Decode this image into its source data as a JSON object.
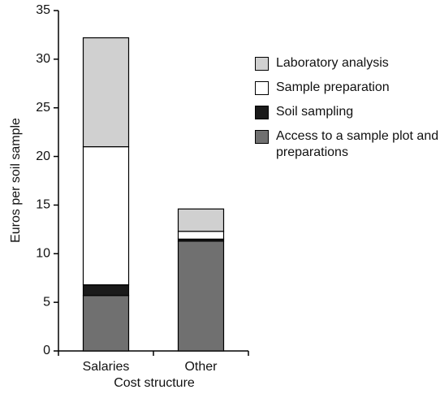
{
  "chart_data": {
    "type": "stacked_bar",
    "x_label": "Cost structure",
    "y_label": "Euros per soil sample",
    "categories": [
      "Salaries",
      "Other"
    ],
    "series": [
      {
        "name": "Access to a sample plot and preparations",
        "color": "#707070",
        "values": [
          5.7,
          11.3
        ]
      },
      {
        "name": "Soil sampling",
        "color": "#1a1a1a",
        "values": [
          1.1,
          0.2
        ]
      },
      {
        "name": "Sample preparation",
        "color": "#ffffff",
        "values": [
          14.2,
          0.8
        ]
      },
      {
        "name": "Laboratory analysis",
        "color": "#d0d0d0",
        "values": [
          11.2,
          2.3
        ]
      }
    ],
    "ylim": [
      0,
      35
    ],
    "yticks": [
      0,
      5,
      10,
      15,
      20,
      25,
      30,
      35
    ],
    "legend": "right"
  }
}
